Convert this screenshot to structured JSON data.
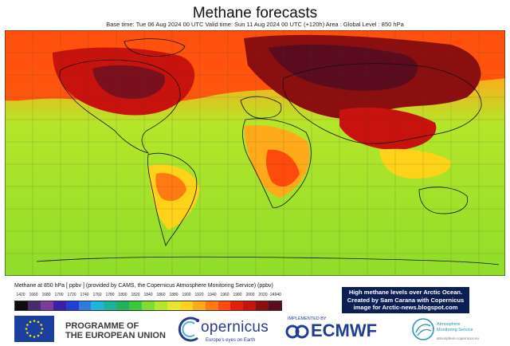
{
  "header": {
    "title": "Methane forecasts",
    "subtitle": "Base time: Tue 06 Aug 2024 00 UTC Valid time: Sun 11 Aug 2024 00 UTC (+120h) Area : Global Level : 850 hPa"
  },
  "legend": {
    "title": "Methane at 850 hPa [ ppbv ] (provided by CAMS, the Copernicus Atmosphere Monitoring Service) (ppbv)",
    "ticks": [
      "1420",
      "1660",
      "1680",
      "1700",
      "1720",
      "1740",
      "1760",
      "1780",
      "1800",
      "1820",
      "1840",
      "1860",
      "1880",
      "1900",
      "1920",
      "1940",
      "1960",
      "1980",
      "2000",
      "2020",
      "24940"
    ],
    "colors": [
      "#0d0d0d",
      "#4a2a6e",
      "#7a3a9e",
      "#3b1fa8",
      "#1f3fd6",
      "#2f7be0",
      "#1fb5d9",
      "#19b3a0",
      "#22b35a",
      "#3bc93b",
      "#7cdc2f",
      "#b4e62a",
      "#e6e62e",
      "#ffd21a",
      "#ffaa1a",
      "#ff7a12",
      "#ff4a0d",
      "#e51f0d",
      "#c8120d",
      "#8c0f0f",
      "#5a0b1e"
    ]
  },
  "annotation": {
    "lines": [
      "High methane levels over Arctic Ocean.",
      "Created by Sam Carana with Copernicus",
      "image for Arctic-news.blogspot.com"
    ]
  },
  "map": {
    "color_low": "#8fdd2a",
    "color_mid": "#ffd21a",
    "color_orange": "#ff7a12",
    "color_high": "#e51f0d",
    "color_peak": "#7a0f1e"
  },
  "footer": {
    "eu_line1": "PROGRAMME OF",
    "eu_line2": "THE EUROPEAN UNION",
    "copernicus_word": "opernicus",
    "copernicus_tagline": "Europe's eyes on Earth",
    "implemented_by": "IMPLEMENTED BY",
    "ecmwf": "ECMWF",
    "cams_line1": "Atmosphere",
    "cams_line2": "Monitoring Service",
    "cams_url": "atmosphere.copernicus.eu"
  }
}
